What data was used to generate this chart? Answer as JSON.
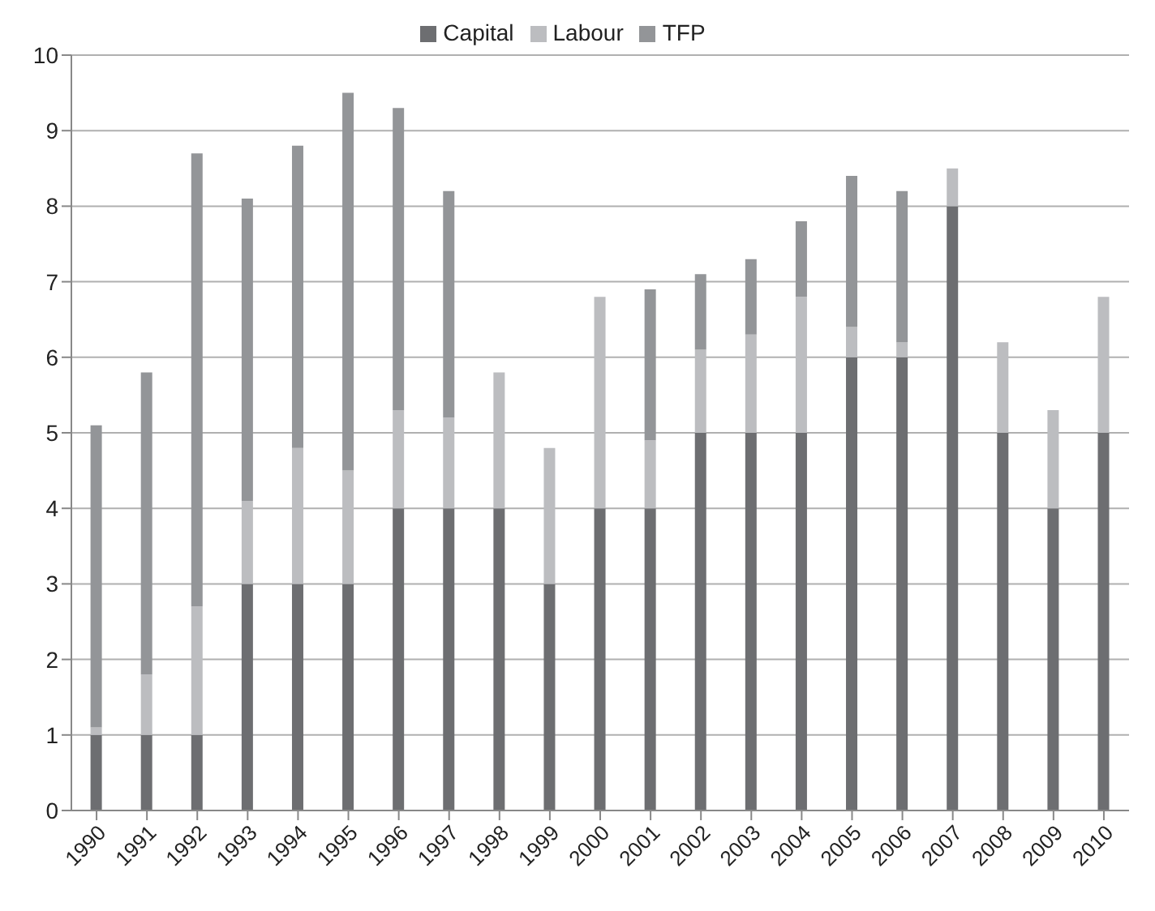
{
  "chart_data": {
    "type": "bar",
    "stacked": true,
    "categories": [
      "1990",
      "1991",
      "1992",
      "1993",
      "1994",
      "1995",
      "1996",
      "1997",
      "1998",
      "1999",
      "2000",
      "2001",
      "2002",
      "2003",
      "2004",
      "2005",
      "2006",
      "2007",
      "2008",
      "2009",
      "2010"
    ],
    "series": [
      {
        "name": "Capital",
        "color": "#6d6e71",
        "values": [
          1,
          1,
          1,
          3,
          3,
          3,
          4,
          4,
          4,
          3,
          4,
          4,
          5,
          5,
          5,
          6,
          6,
          8,
          5,
          4,
          5
        ]
      },
      {
        "name": "Labour",
        "color": "#bcbdc0",
        "values": [
          0.1,
          0.8,
          1.7,
          1.1,
          1.8,
          1.5,
          1.3,
          1.2,
          1.8,
          1.8,
          2.8,
          0.9,
          1.1,
          1.3,
          1.8,
          0.4,
          0.2,
          0.5,
          1.2,
          1.3,
          1.8
        ]
      },
      {
        "name": "TFP",
        "color": "#939598",
        "values": [
          4,
          4,
          6,
          4,
          4,
          5,
          4,
          3,
          0,
          0,
          0,
          2,
          1,
          1,
          1,
          2,
          2,
          0,
          0,
          0,
          0
        ]
      }
    ],
    "ylim": [
      0,
      10
    ],
    "yticks": [
      0,
      1,
      2,
      3,
      4,
      5,
      6,
      7,
      8,
      9,
      10
    ],
    "grid": "y",
    "legend": "top"
  }
}
